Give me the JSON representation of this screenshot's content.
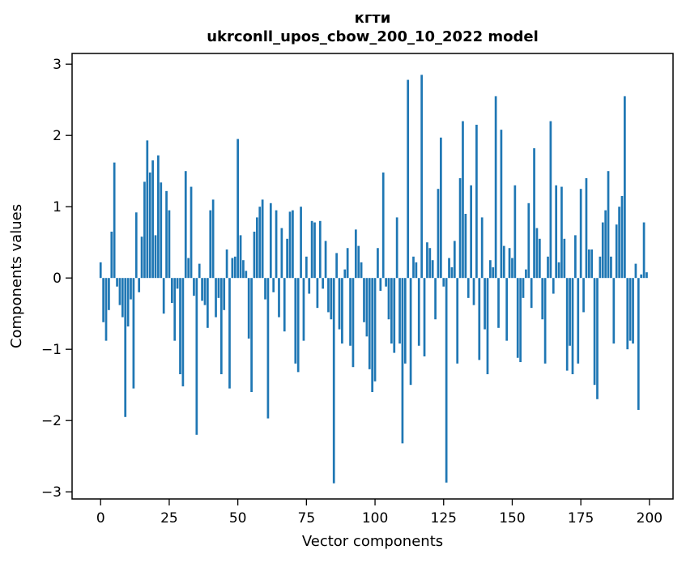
{
  "figure": {
    "background": "#ffffff"
  },
  "chart_data": {
    "type": "bar",
    "title_line1": "кгти",
    "title_line2": "ukrconll_upos_cbow_200_10_2022 model",
    "xlabel": "Vector components",
    "ylabel": "Components values",
    "bar_color": "#1f77b4",
    "axis_color": "#000000",
    "grid": false,
    "legend_position": "none",
    "bar_width": 0.8,
    "xlim": [
      -10.4,
      208.6
    ],
    "ylim": [
      -3.1,
      3.15
    ],
    "x_ticks": [
      0,
      25,
      50,
      75,
      100,
      125,
      150,
      175,
      200
    ],
    "y_ticks": [
      3,
      2,
      1,
      0,
      -1,
      -2,
      -3
    ],
    "values": [
      0.22,
      -0.62,
      -0.88,
      -0.45,
      0.65,
      1.62,
      -0.12,
      -0.38,
      -0.55,
      -1.95,
      -0.68,
      -0.3,
      -1.55,
      0.92,
      -0.2,
      0.58,
      1.35,
      1.93,
      1.48,
      1.65,
      0.6,
      1.72,
      1.34,
      -0.5,
      1.22,
      0.95,
      -0.35,
      -0.88,
      -0.15,
      -1.35,
      -1.52,
      1.5,
      0.28,
      1.28,
      -0.25,
      -2.2,
      0.2,
      -0.32,
      -0.38,
      -0.7,
      0.95,
      1.1,
      -0.55,
      -0.28,
      -1.35,
      -0.45,
      0.4,
      -1.55,
      0.28,
      0.3,
      1.95,
      0.6,
      0.25,
      0.1,
      -0.85,
      -1.6,
      0.65,
      0.85,
      1.0,
      1.1,
      -0.3,
      -1.97,
      1.05,
      -0.2,
      0.95,
      -0.55,
      0.7,
      -0.75,
      0.55,
      0.93,
      0.95,
      -1.2,
      -1.32,
      1.0,
      -0.88,
      0.3,
      -0.22,
      0.8,
      0.78,
      -0.42,
      0.8,
      -0.15,
      0.52,
      -0.48,
      -0.58,
      -2.88,
      0.35,
      -0.72,
      -0.92,
      0.12,
      0.42,
      -0.95,
      -1.25,
      0.68,
      0.45,
      0.22,
      -0.62,
      -0.82,
      -1.28,
      -1.6,
      -1.45,
      0.42,
      -0.18,
      1.48,
      -0.12,
      -0.58,
      -0.92,
      -1.05,
      0.85,
      -0.92,
      -2.32,
      -1.2,
      2.78,
      -1.5,
      0.3,
      0.22,
      -0.95,
      2.85,
      -1.1,
      0.5,
      0.42,
      0.25,
      -0.58,
      1.25,
      1.97,
      -0.12,
      -2.87,
      0.28,
      0.15,
      0.52,
      -1.2,
      1.4,
      2.2,
      0.9,
      -0.28,
      1.3,
      -0.38,
      2.15,
      -1.15,
      0.85,
      -0.72,
      -1.35,
      0.25,
      0.15,
      2.55,
      -0.7,
      2.08,
      0.45,
      -0.88,
      0.42,
      0.28,
      1.3,
      -1.12,
      -1.18,
      -0.28,
      0.12,
      1.05,
      -0.42,
      1.82,
      0.7,
      0.55,
      -0.58,
      -1.2,
      0.3,
      2.2,
      -0.22,
      1.3,
      0.22,
      1.28,
      0.55,
      -1.3,
      -0.95,
      -1.35,
      0.6,
      -1.2,
      1.25,
      -0.48,
      1.4,
      0.4,
      0.4,
      -1.5,
      -1.7,
      0.3,
      0.78,
      0.95,
      1.5,
      0.3,
      -0.92,
      0.75,
      1.0,
      1.15,
      2.55,
      -1.0,
      -0.88,
      -0.92,
      0.2,
      -1.85,
      0.05,
      0.78,
      0.08
    ]
  }
}
